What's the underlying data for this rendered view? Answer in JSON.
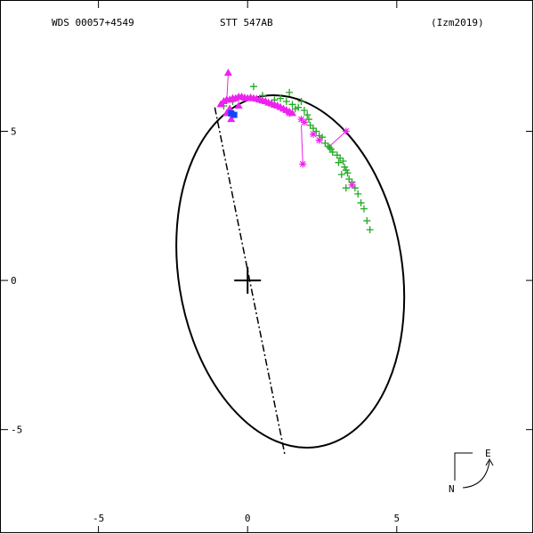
{
  "header": {
    "left": "WDS 00057+4549",
    "center": "STT 547AB",
    "right": "(Izm2019)"
  },
  "compass": {
    "east": "E",
    "north": "N"
  },
  "colors": {
    "orbit": "#000000",
    "micrometer": "#22aa22",
    "interferometric": "#ee22ee",
    "latest": "#1144ff"
  },
  "chart_data": {
    "type": "scatter",
    "title": "",
    "xlabel": "",
    "ylabel": "",
    "xlim": [
      -8.3,
      9.6
    ],
    "ylim": [
      -8.5,
      9.4
    ],
    "x_ticks": [
      -5,
      0,
      5
    ],
    "x_tick_labels": [
      "-5",
      "0",
      "5"
    ],
    "y_ticks": [
      5,
      0,
      -5
    ],
    "y_tick_labels": [
      "5",
      "0",
      "-5"
    ],
    "grid": false,
    "orbit": {
      "center": [
        1.43,
        0.3
      ],
      "semi_major": 5.95,
      "semi_minor": 3.75,
      "major_axis_direction": [
        0.157,
        -0.988
      ],
      "observed_arc_start": [
        -1.1,
        5.8
      ],
      "observed_arc_end": [
        4.05,
        1.65
      ]
    },
    "line_of_nodes": [
      [
        -1.1,
        5.8
      ],
      [
        1.25,
        -5.85
      ]
    ],
    "primary": [
      0,
      0
    ],
    "series": [
      {
        "marker": "plus",
        "values": [
          [
            0.2,
            6.5
          ],
          [
            0.5,
            6.2
          ],
          [
            0.9,
            6.05
          ],
          [
            1.3,
            6.0
          ],
          [
            1.4,
            6.3
          ],
          [
            1.5,
            5.9
          ],
          [
            1.7,
            5.8
          ],
          [
            1.8,
            6.0
          ],
          [
            1.9,
            5.7
          ],
          [
            2.0,
            5.55
          ],
          [
            2.05,
            5.4
          ],
          [
            2.1,
            5.2
          ],
          [
            2.2,
            5.1
          ],
          [
            2.3,
            5.0
          ],
          [
            2.4,
            4.85
          ],
          [
            2.5,
            4.8
          ],
          [
            2.6,
            4.6
          ],
          [
            2.7,
            4.5
          ],
          [
            2.8,
            4.4
          ],
          [
            2.85,
            4.3
          ],
          [
            3.0,
            4.2
          ],
          [
            3.1,
            4.1
          ],
          [
            3.2,
            4.0
          ],
          [
            3.25,
            3.8
          ],
          [
            3.3,
            3.7
          ],
          [
            3.35,
            3.6
          ],
          [
            3.4,
            3.4
          ],
          [
            3.5,
            3.3
          ],
          [
            3.6,
            3.1
          ],
          [
            3.7,
            2.9
          ],
          [
            3.8,
            2.6
          ],
          [
            3.9,
            2.4
          ],
          [
            4.0,
            2.0
          ],
          [
            4.1,
            1.7
          ],
          [
            3.3,
            3.1
          ],
          [
            3.05,
            3.95
          ],
          [
            2.75,
            4.45
          ],
          [
            3.15,
            3.55
          ],
          [
            1.6,
            5.75
          ],
          [
            1.1,
            6.1
          ],
          [
            -0.8,
            5.85
          ],
          [
            -0.5,
            6.0
          ]
        ]
      },
      {
        "marker": "triangle",
        "values": [
          [
            -0.9,
            5.9
          ],
          [
            -0.8,
            6.0
          ],
          [
            -0.7,
            6.05
          ],
          [
            -0.6,
            6.05
          ],
          [
            -0.5,
            6.1
          ],
          [
            -0.4,
            6.1
          ],
          [
            -0.3,
            6.15
          ],
          [
            -0.2,
            6.15
          ],
          [
            -0.1,
            6.12
          ],
          [
            0.0,
            6.1
          ],
          [
            0.1,
            6.12
          ],
          [
            0.2,
            6.1
          ],
          [
            0.3,
            6.08
          ],
          [
            0.4,
            6.05
          ],
          [
            0.5,
            6.02
          ],
          [
            0.6,
            6.0
          ],
          [
            0.7,
            5.95
          ],
          [
            0.8,
            5.92
          ],
          [
            0.9,
            5.88
          ],
          [
            1.0,
            5.85
          ],
          [
            1.1,
            5.8
          ],
          [
            1.2,
            5.75
          ],
          [
            1.3,
            5.7
          ],
          [
            1.4,
            5.65
          ],
          [
            1.5,
            5.6
          ],
          [
            -0.6,
            5.75
          ],
          [
            -0.3,
            5.85
          ],
          [
            -0.7,
            5.6
          ],
          [
            -0.55,
            5.4
          ],
          [
            -0.65,
            6.95
          ]
        ]
      },
      {
        "marker": "asterisk",
        "values": [
          [
            1.8,
            5.4
          ],
          [
            1.9,
            5.3
          ],
          [
            2.2,
            4.9
          ],
          [
            1.85,
            3.9
          ],
          [
            3.3,
            5.0
          ],
          [
            3.5,
            3.2
          ],
          [
            1.4,
            5.6
          ],
          [
            2.4,
            4.7
          ]
        ]
      },
      {
        "marker": "square",
        "values": [
          [
            -0.55,
            5.6
          ],
          [
            -0.45,
            5.55
          ]
        ]
      }
    ],
    "residual_lines": [
      [
        [
          -0.65,
          6.95
        ],
        [
          -0.7,
          6.0
        ]
      ],
      [
        [
          1.85,
          3.9
        ],
        [
          1.8,
          5.2
        ]
      ],
      [
        [
          3.3,
          5.0
        ],
        [
          2.75,
          4.5
        ]
      ]
    ]
  }
}
